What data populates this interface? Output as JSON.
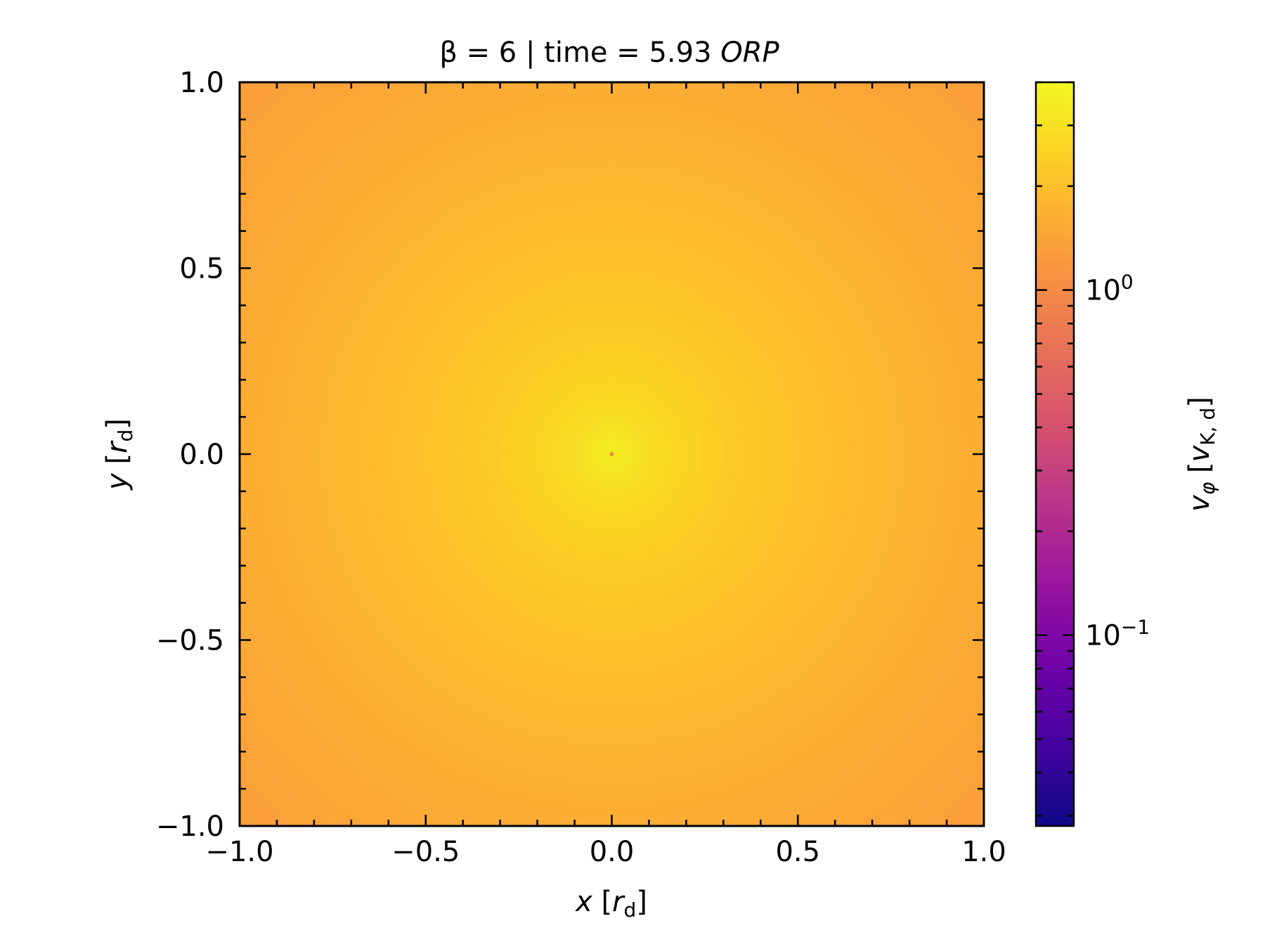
{
  "chart_data": {
    "type": "heatmap",
    "title": {
      "prefix": "β = 6 | time = 5.93 ",
      "unit": "ORP"
    },
    "xlabel": {
      "var": "x",
      "unit_base": "r",
      "unit_sub": "d"
    },
    "ylabel": {
      "var": "y",
      "unit_base": "r",
      "unit_sub": "d"
    },
    "xlim": [
      -1.0,
      1.0
    ],
    "ylim": [
      -1.0,
      1.0
    ],
    "xticks": [
      -1.0,
      -0.5,
      0.0,
      0.5,
      1.0
    ],
    "yticks": [
      -1.0,
      -0.5,
      0.0,
      0.5,
      1.0
    ],
    "xtick_labels": [
      "−1.0",
      "−0.5",
      "0.0",
      "0.5",
      "1.0"
    ],
    "ytick_labels": [
      "−1.0",
      "−0.5",
      "0.0",
      "0.5",
      "1.0"
    ],
    "minor_tick_step": 0.1,
    "colorbar": {
      "label": {
        "var": "v",
        "var_sub": "φ",
        "unit_base": "v",
        "unit_sub": "K, d"
      },
      "scale": "log",
      "range": [
        0.028,
        4.0
      ],
      "ticks": [
        {
          "value": 1.0,
          "base": "10",
          "exp": "0"
        },
        {
          "value": 0.1,
          "base": "10",
          "exp": "−1"
        }
      ],
      "colormap": "plasma"
    },
    "field": {
      "description_values": "azimuthal velocity, log-scaled; peak near center",
      "center_value": 3.5,
      "outer_value": 1.3,
      "center": [
        0.0,
        0.0
      ]
    },
    "colormap_stops": [
      "#0d0887",
      "#46039f",
      "#7201a8",
      "#9c179e",
      "#bd3786",
      "#d8576b",
      "#ed7953",
      "#fb9f3a",
      "#fdca26",
      "#f0f921"
    ]
  }
}
